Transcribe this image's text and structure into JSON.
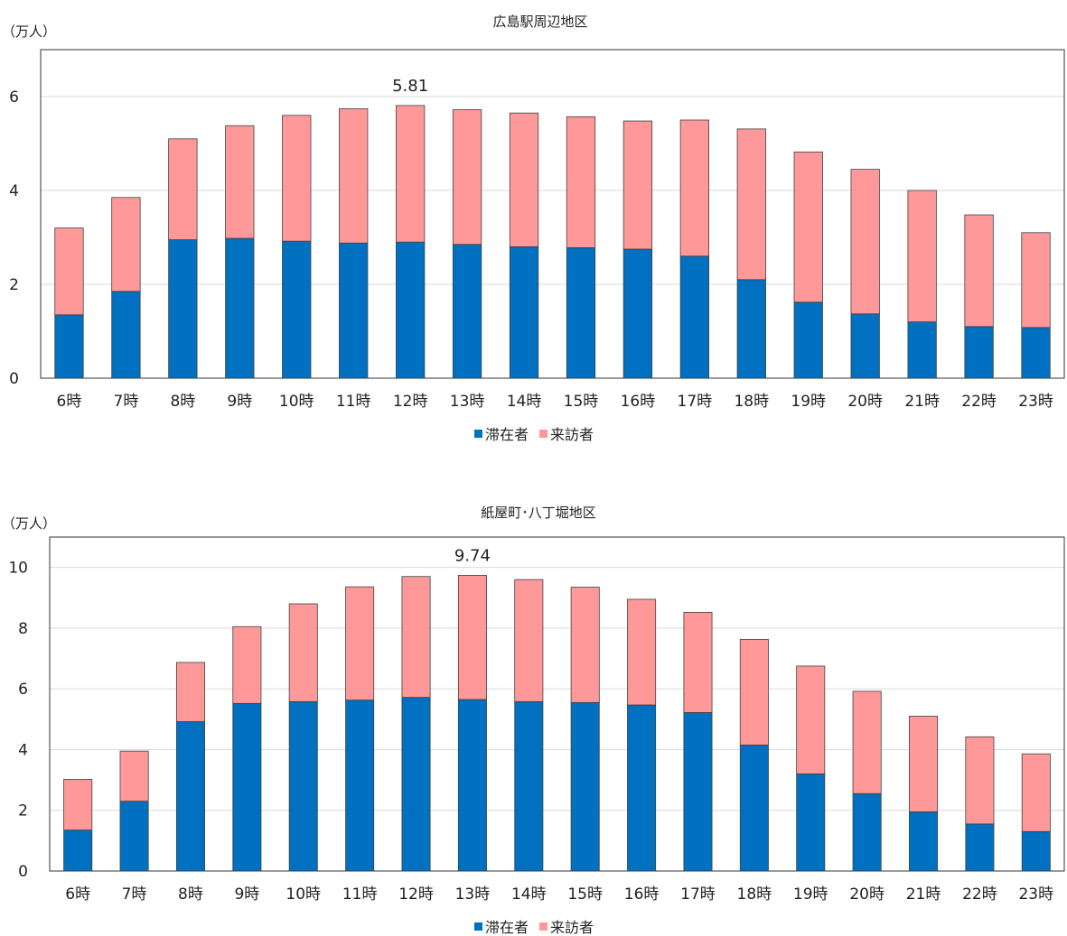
{
  "chart_data": [
    {
      "type": "bar",
      "stacked": true,
      "title": "広島駅周辺地区",
      "unit_label": "（万人）",
      "categories": [
        "6時",
        "7時",
        "8時",
        "9時",
        "10時",
        "11時",
        "12時",
        "13時",
        "14時",
        "15時",
        "16時",
        "17時",
        "18時",
        "19時",
        "20時",
        "21時",
        "22時",
        "23時"
      ],
      "series": [
        {
          "name": "滞在者",
          "color": "#0070c0",
          "values": [
            1.35,
            1.85,
            2.95,
            2.98,
            2.92,
            2.88,
            2.9,
            2.85,
            2.8,
            2.78,
            2.75,
            2.6,
            2.1,
            1.62,
            1.37,
            1.2,
            1.1,
            1.08
          ]
        },
        {
          "name": "来訪者",
          "color": "#ff9999",
          "values": [
            1.85,
            2.0,
            2.15,
            2.4,
            2.68,
            2.86,
            2.91,
            2.87,
            2.85,
            2.79,
            2.73,
            2.9,
            3.21,
            3.2,
            3.08,
            2.8,
            2.38,
            2.02
          ]
        }
      ],
      "ylim": [
        0,
        7
      ],
      "yticks": [
        0,
        2,
        4,
        6
      ],
      "peak_label": {
        "text": "5.81",
        "index": 6
      },
      "grid": true,
      "legend": "bottom"
    },
    {
      "type": "bar",
      "stacked": true,
      "title": "紙屋町･八丁堀地区",
      "unit_label": "（万人）",
      "categories": [
        "6時",
        "7時",
        "8時",
        "9時",
        "10時",
        "11時",
        "12時",
        "13時",
        "14時",
        "15時",
        "16時",
        "17時",
        "18時",
        "19時",
        "20時",
        "21時",
        "22時",
        "23時"
      ],
      "series": [
        {
          "name": "滞在者",
          "color": "#0070c0",
          "values": [
            1.35,
            2.3,
            4.92,
            5.52,
            5.58,
            5.63,
            5.72,
            5.65,
            5.58,
            5.55,
            5.47,
            5.22,
            4.15,
            3.2,
            2.55,
            1.95,
            1.55,
            1.3
          ]
        },
        {
          "name": "来訪者",
          "color": "#ff9999",
          "values": [
            1.67,
            1.65,
            1.95,
            2.53,
            3.22,
            3.73,
            3.98,
            4.09,
            4.02,
            3.8,
            3.48,
            3.3,
            3.48,
            3.55,
            3.37,
            3.15,
            2.87,
            2.56
          ]
        }
      ],
      "ylim": [
        0,
        11
      ],
      "yticks": [
        0,
        2,
        4,
        6,
        8,
        10
      ],
      "peak_label": {
        "text": "9.74",
        "index": 7
      },
      "grid": true,
      "legend": "bottom"
    }
  ]
}
